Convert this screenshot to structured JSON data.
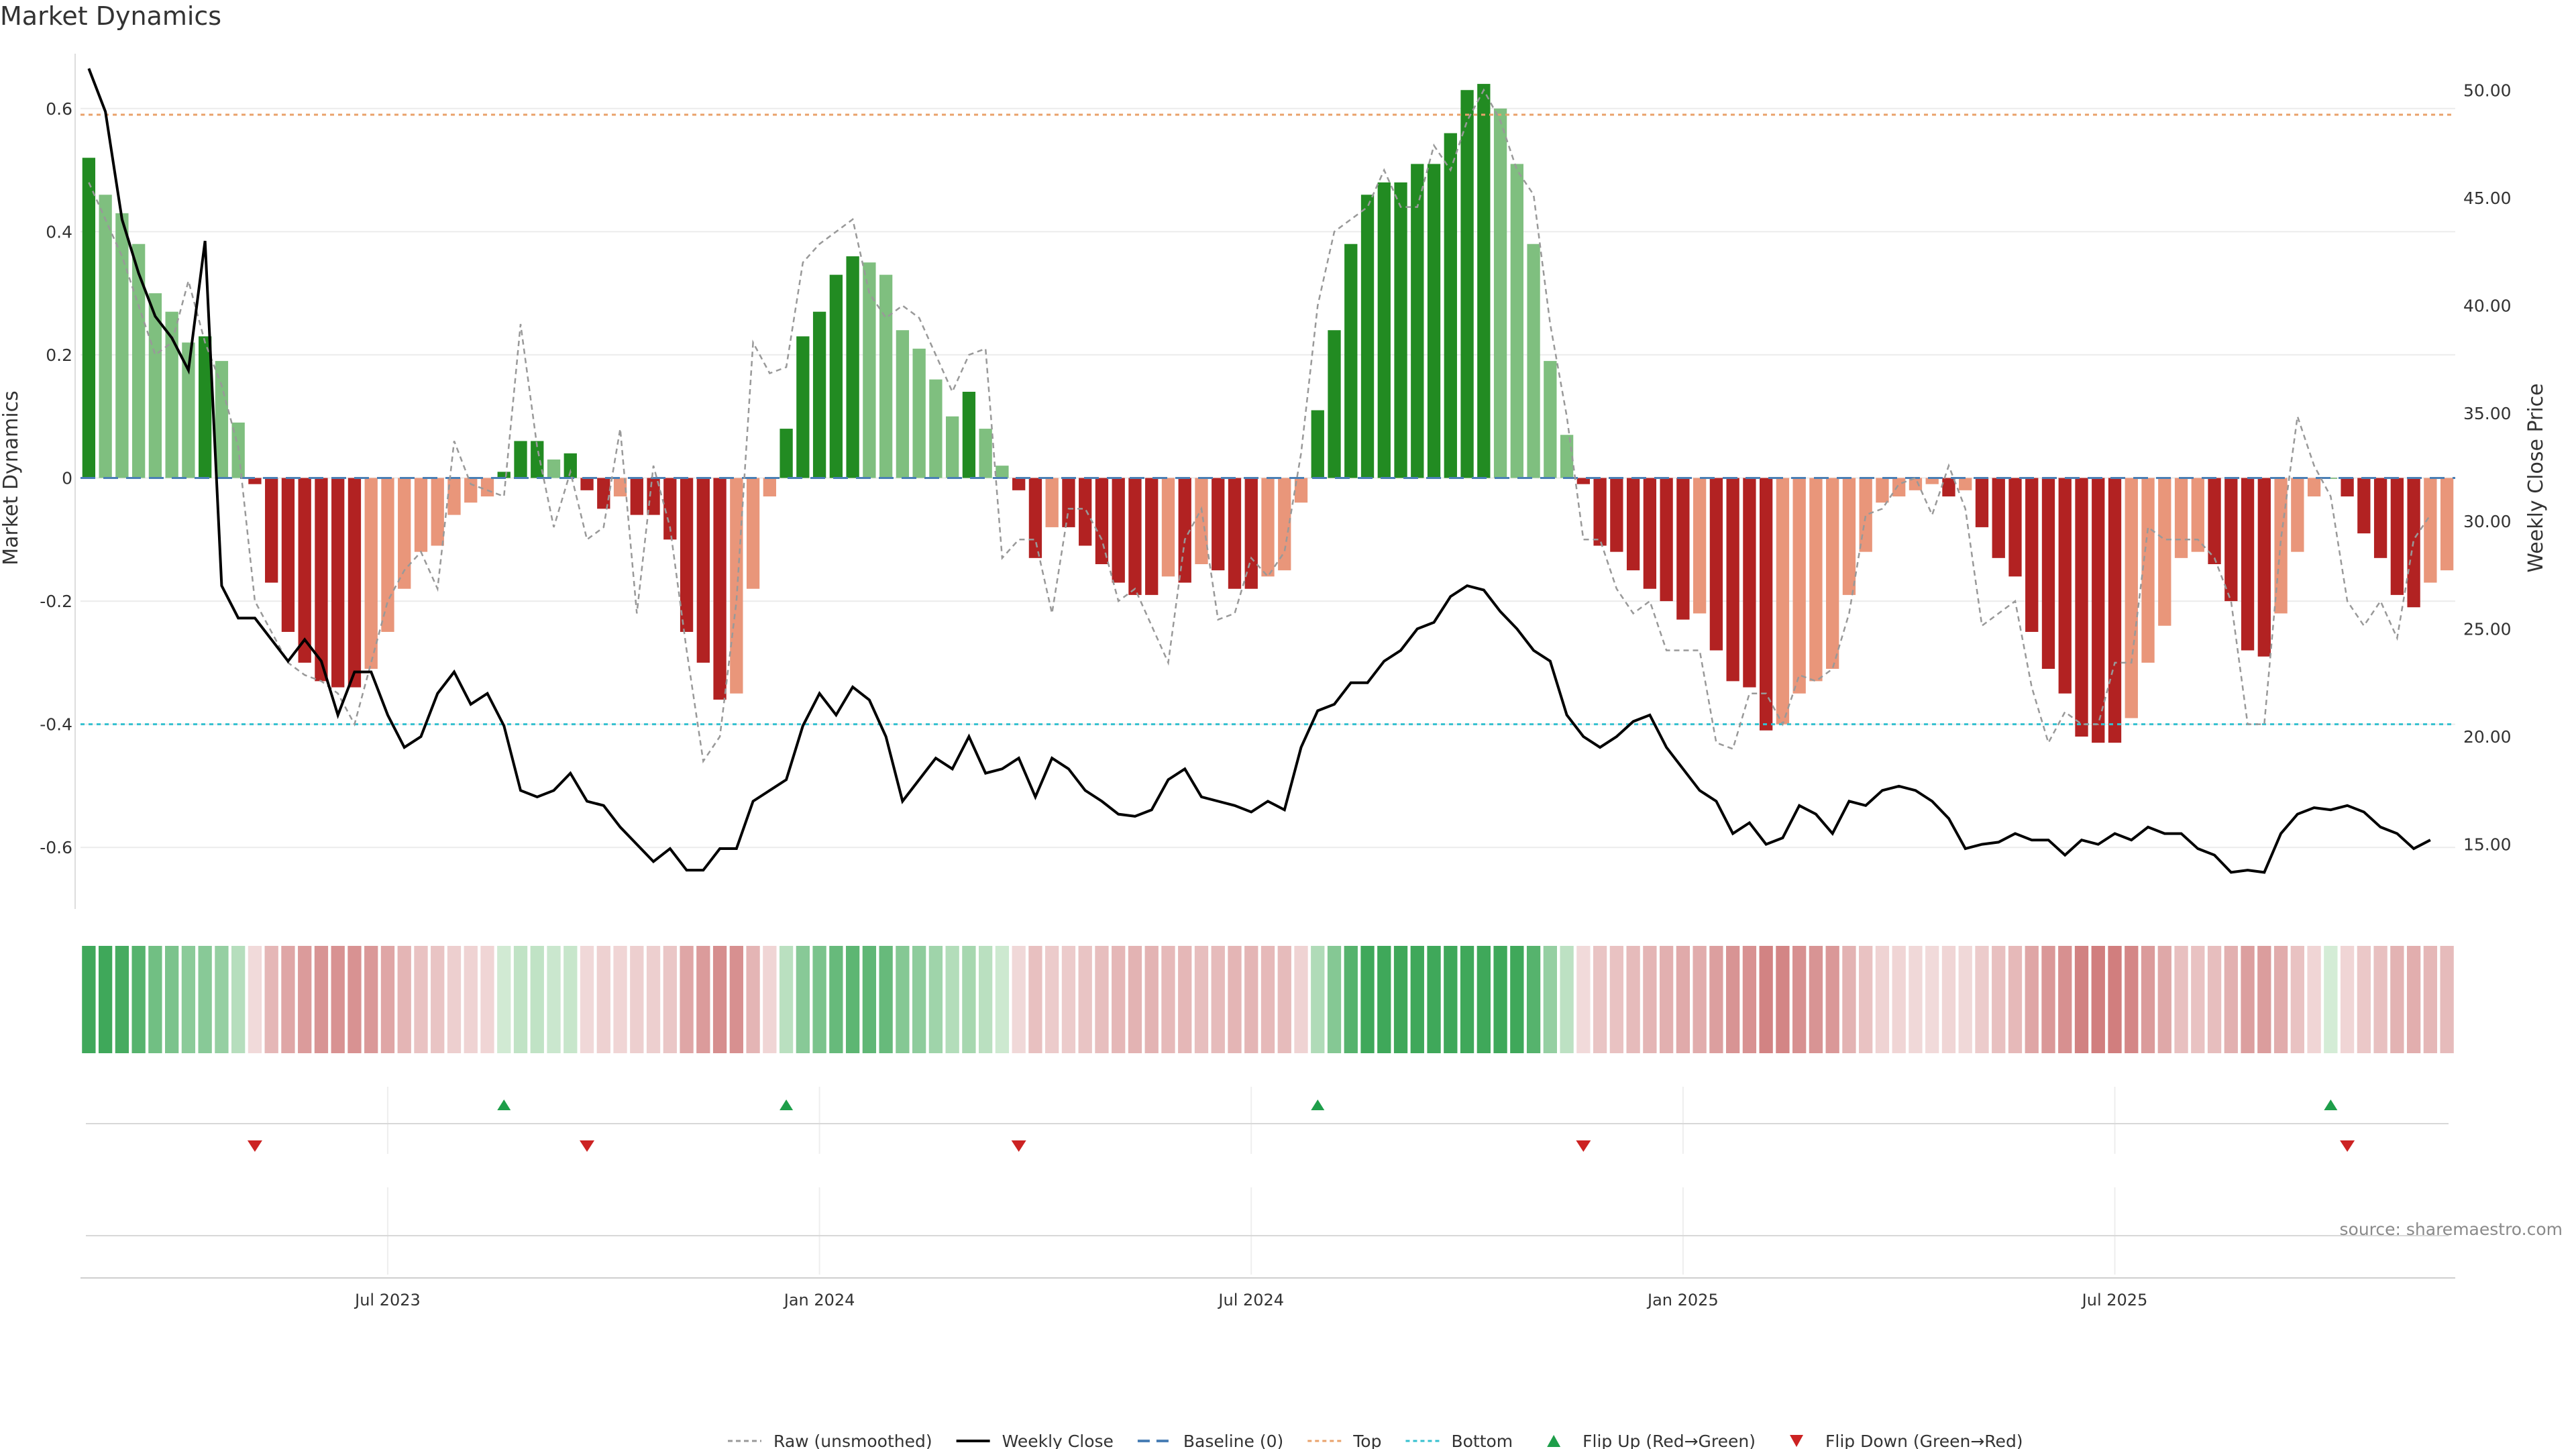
{
  "title": "Market Dynamics",
  "source": "source: sharemaestro.com",
  "colors": {
    "strong_green": "#228B22",
    "light_green": "#7FBF7F",
    "strong_red": "#B22222",
    "light_red": "#E9967A",
    "raw": "#999999",
    "close": "#000000",
    "baseline": "#4A7FB5",
    "top": "#E9A26B",
    "bottom": "#35C0CF",
    "flip_up": "#1E9E4A",
    "flip_down": "#CC2222"
  },
  "legend": [
    {
      "label": "Raw (unsmoothed)",
      "style": "raw"
    },
    {
      "label": "Weekly Close",
      "style": "close"
    },
    {
      "label": "Baseline (0)",
      "style": "baseline"
    },
    {
      "label": "Top",
      "style": "top"
    },
    {
      "label": "Bottom",
      "style": "bottom"
    },
    {
      "label": "Flip Up (Red→Green)",
      "style": "flip_up"
    },
    {
      "label": "Flip Down (Green→Red)",
      "style": "flip_down"
    }
  ],
  "chart_data": {
    "type": "bar",
    "title": "Market Dynamics",
    "ylabel": "Market Dynamics",
    "y2label": "Weekly Close Price",
    "ylim": [
      -0.7,
      0.7
    ],
    "y2lim": [
      12.0,
      52.0
    ],
    "yticks": [
      0.6,
      0.4,
      0.2,
      0,
      -0.2,
      -0.4,
      -0.6
    ],
    "y2ticks": [
      50.0,
      45.0,
      40.0,
      35.0,
      30.0,
      25.0,
      20.0,
      15.0
    ],
    "x_dates": {
      "start": "2023-02-27",
      "weeks": 142
    },
    "xticks": [
      {
        "label": "Jul 2023",
        "week": 18
      },
      {
        "label": "Jan 2024",
        "week": 44
      },
      {
        "label": "Jul 2024",
        "week": 70
      },
      {
        "label": "Jan 2025",
        "week": 96
      },
      {
        "label": "Jul 2025",
        "week": 122
      }
    ],
    "top_line": 0.59,
    "bottom_line": -0.4,
    "baseline": 0,
    "dynamics": [
      0.52,
      0.46,
      0.43,
      0.38,
      0.3,
      0.27,
      0.22,
      0.23,
      0.19,
      0.09,
      -0.01,
      -0.17,
      -0.25,
      -0.3,
      -0.33,
      -0.34,
      -0.34,
      -0.31,
      -0.25,
      -0.18,
      -0.12,
      -0.11,
      -0.06,
      -0.04,
      -0.03,
      0.01,
      0.06,
      0.06,
      0.03,
      0.04,
      -0.02,
      -0.05,
      -0.03,
      -0.06,
      -0.06,
      -0.1,
      -0.25,
      -0.3,
      -0.36,
      -0.35,
      -0.18,
      -0.03,
      0.08,
      0.23,
      0.27,
      0.33,
      0.36,
      0.35,
      0.33,
      0.24,
      0.21,
      0.16,
      0.1,
      0.14,
      0.08,
      0.02,
      -0.02,
      -0.13,
      -0.08,
      -0.08,
      -0.11,
      -0.14,
      -0.17,
      -0.19,
      -0.19,
      -0.16,
      -0.17,
      -0.14,
      -0.15,
      -0.18,
      -0.18,
      -0.16,
      -0.15,
      -0.04,
      0.11,
      0.24,
      0.38,
      0.46,
      0.48,
      0.48,
      0.51,
      0.51,
      0.56,
      0.63,
      0.64,
      0.6,
      0.51,
      0.38,
      0.19,
      0.07,
      -0.01,
      -0.11,
      -0.12,
      -0.15,
      -0.18,
      -0.2,
      -0.23,
      -0.22,
      -0.28,
      -0.33,
      -0.34,
      -0.41,
      -0.4,
      -0.35,
      -0.33,
      -0.31,
      -0.19,
      -0.12,
      -0.04,
      -0.03,
      -0.02,
      -0.01,
      -0.03,
      -0.02,
      -0.08,
      -0.13,
      -0.16,
      -0.25,
      -0.31,
      -0.35,
      -0.42,
      -0.43,
      -0.43,
      -0.39,
      -0.3,
      -0.24,
      -0.13,
      -0.12,
      -0.14,
      -0.2,
      -0.28,
      -0.29,
      -0.22,
      -0.12,
      -0.03,
      0,
      -0.03,
      -0.09,
      -0.13,
      -0.19,
      -0.21,
      -0.17,
      -0.15
    ],
    "raw": [
      0.48,
      0.42,
      0.36,
      0.28,
      0.2,
      0.22,
      0.32,
      0.22,
      0.15,
      0.05,
      -0.2,
      -0.25,
      -0.3,
      -0.32,
      -0.33,
      -0.35,
      -0.4,
      -0.3,
      -0.2,
      -0.15,
      -0.12,
      -0.18,
      0.06,
      -0.01,
      -0.02,
      -0.03,
      0.25,
      0.05,
      -0.08,
      0.01,
      -0.1,
      -0.08,
      0.08,
      -0.22,
      0.02,
      -0.08,
      -0.28,
      -0.46,
      -0.42,
      -0.2,
      0.22,
      0.17,
      0.18,
      0.35,
      0.38,
      0.4,
      0.42,
      0.3,
      0.26,
      0.28,
      0.26,
      0.2,
      0.14,
      0.2,
      0.21,
      -0.13,
      -0.1,
      -0.1,
      -0.22,
      -0.05,
      -0.05,
      -0.1,
      -0.2,
      -0.18,
      -0.24,
      -0.3,
      -0.1,
      -0.05,
      -0.23,
      -0.22,
      -0.13,
      -0.16,
      -0.12,
      0.04,
      0.28,
      0.4,
      0.42,
      0.44,
      0.5,
      0.44,
      0.44,
      0.54,
      0.5,
      0.58,
      0.63,
      0.58,
      0.5,
      0.46,
      0.25,
      0.1,
      -0.1,
      -0.1,
      -0.18,
      -0.22,
      -0.2,
      -0.28,
      -0.28,
      -0.28,
      -0.43,
      -0.44,
      -0.35,
      -0.35,
      -0.4,
      -0.32,
      -0.33,
      -0.31,
      -0.22,
      -0.06,
      -0.05,
      -0.01,
      0.0,
      -0.06,
      0.02,
      -0.05,
      -0.24,
      -0.22,
      -0.2,
      -0.34,
      -0.43,
      -0.38,
      -0.4,
      -0.4,
      -0.3,
      -0.3,
      -0.08,
      -0.1,
      -0.1,
      -0.1,
      -0.13,
      -0.2,
      -0.4,
      -0.4,
      -0.1,
      0.1,
      0.02,
      -0.03,
      -0.2,
      -0.24,
      -0.2,
      -0.26,
      -0.1,
      -0.06
    ],
    "weekly_close": [
      51.0,
      49.0,
      44.0,
      41.5,
      39.5,
      38.5,
      37.0,
      43.0,
      27.0,
      25.5,
      25.5,
      24.5,
      23.5,
      24.5,
      23.5,
      21.0,
      23.0,
      23.0,
      21.0,
      19.5,
      20.0,
      22.0,
      23.0,
      21.5,
      22.0,
      20.5,
      17.5,
      17.2,
      17.5,
      18.3,
      17.0,
      16.8,
      15.8,
      15.0,
      14.2,
      14.8,
      13.8,
      13.8,
      14.8,
      14.8,
      17.0,
      17.5,
      18.0,
      20.5,
      22.0,
      21.0,
      22.3,
      21.7,
      20.0,
      17.0,
      18.0,
      19.0,
      18.5,
      20.0,
      18.3,
      18.5,
      19.0,
      17.2,
      19.0,
      18.5,
      17.5,
      17.0,
      16.4,
      16.3,
      16.6,
      18.0,
      18.5,
      17.2,
      17.0,
      16.8,
      16.5,
      17.0,
      16.6,
      19.5,
      21.2,
      21.5,
      22.5,
      22.5,
      23.5,
      24.0,
      25.0,
      25.3,
      26.5,
      27.0,
      26.8,
      25.8,
      25.0,
      24.0,
      23.5,
      21.0,
      20.0,
      19.5,
      20.0,
      20.7,
      21.0,
      19.5,
      18.5,
      17.5,
      17.0,
      15.5,
      16.0,
      15.0,
      15.3,
      16.8,
      16.4,
      15.5,
      17.0,
      16.8,
      17.5,
      17.7,
      17.5,
      17.0,
      16.2,
      14.8,
      15.0,
      15.1,
      15.5,
      15.2,
      15.2,
      14.5,
      15.2,
      15.0,
      15.5,
      15.2,
      15.8,
      15.5,
      15.5,
      14.8,
      14.5,
      13.7,
      13.8,
      13.7,
      15.5,
      16.4,
      16.7,
      16.6,
      16.8,
      16.5,
      15.8,
      15.5,
      14.8,
      15.2
    ]
  }
}
